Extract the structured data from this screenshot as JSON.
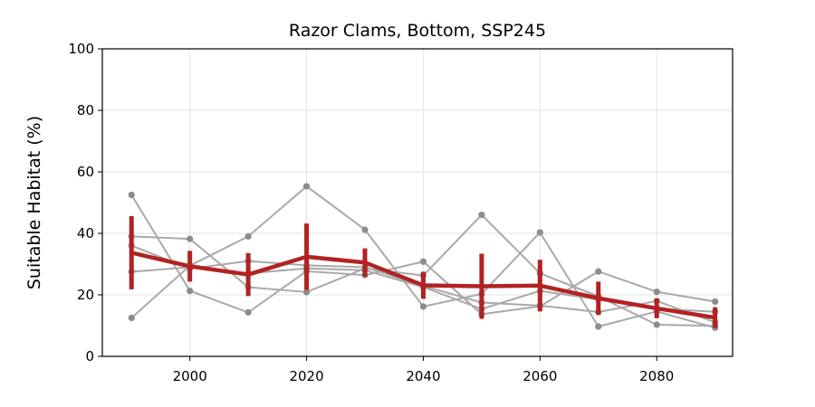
{
  "chart_data": {
    "type": "line",
    "title": "Razor Clams, Bottom, SSP245",
    "xlabel": "",
    "ylabel": "Suitable Habitat (%)",
    "xlim": [
      1985,
      2093
    ],
    "ylim": [
      0,
      100
    ],
    "x_ticks": [
      2000,
      2020,
      2040,
      2060,
      2080
    ],
    "y_ticks": [
      0,
      20,
      40,
      60,
      80,
      100
    ],
    "grid": true,
    "x": [
      1990,
      2000,
      2010,
      2020,
      2030,
      2040,
      2050,
      2060,
      2070,
      2080,
      2090
    ],
    "ensemble_members": [
      {
        "values": [
          52.5,
          21.3,
          14.3,
          27.7,
          26.4,
          30.8,
          13.7,
          16.3,
          27.6,
          21.0,
          17.8
        ]
      },
      {
        "values": [
          12.5,
          29.5,
          39.0,
          55.3,
          41.2,
          16.2,
          20.3,
          40.3,
          9.7,
          14.6,
          9.3
        ]
      },
      {
        "values": [
          39.0,
          38.2,
          22.5,
          20.9,
          28.6,
          26.3,
          46.0,
          27.0,
          19.5,
          10.3,
          9.9
        ]
      },
      {
        "values": [
          36.0,
          28.5,
          31.0,
          29.6,
          29.0,
          22.9,
          17.5,
          16.5,
          14.4,
          18.0,
          11.1
        ]
      },
      {
        "values": [
          27.5,
          29.0,
          27.0,
          28.6,
          28.0,
          22.5,
          15.4,
          21.3,
          18.5,
          15.5,
          14.5
        ]
      }
    ],
    "mean": {
      "values": [
        33.7,
        29.3,
        26.6,
        32.4,
        30.5,
        23.1,
        22.8,
        23.0,
        18.9,
        15.6,
        12.6
      ],
      "error": [
        11.9,
        5.0,
        7.0,
        10.8,
        4.6,
        4.4,
        10.6,
        8.4,
        5.4,
        3.2,
        3.4
      ]
    },
    "colors": {
      "members": "#a9a9a9",
      "member_markers": "#8c8c8c",
      "mean": "#b22222",
      "grid": "#e3e3e3"
    }
  }
}
